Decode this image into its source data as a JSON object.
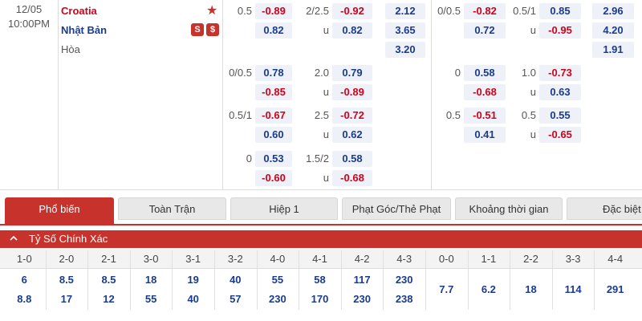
{
  "match": {
    "date": "12/05",
    "time": "10:00PM",
    "home": "Croatia",
    "away": "Nhật Bản",
    "draw": "Hòa",
    "badge_1": "S",
    "badge_2": "$"
  },
  "odds_left": {
    "rows": [
      {
        "hcap": "0.5",
        "hcap_home": "-0.89",
        "hcap_away": "0.82",
        "ou_line": "2/2.5",
        "ou_over": "-0.92",
        "ou_under_label": "u",
        "ou_under": "0.82",
        "x1": "2.12",
        "x2": "3.65",
        "x3": "3.20"
      },
      {
        "hcap": "0/0.5",
        "hcap_home": "0.78",
        "hcap_away": "-0.85",
        "ou_line": "2.0",
        "ou_over": "0.79",
        "ou_under_label": "u",
        "ou_under": "-0.89"
      },
      {
        "hcap": "0.5/1",
        "hcap_home": "-0.67",
        "hcap_away": "0.60",
        "ou_line": "2.5",
        "ou_over": "-0.72",
        "ou_under_label": "u",
        "ou_under": "0.62"
      },
      {
        "hcap": "0",
        "hcap_home": "0.53",
        "hcap_away": "-0.60",
        "ou_line": "1.5/2",
        "ou_over": "0.58",
        "ou_under_label": "u",
        "ou_under": "-0.68"
      }
    ]
  },
  "odds_right": {
    "rows": [
      {
        "hcap": "0/0.5",
        "hcap_home": "-0.82",
        "hcap_away": "0.72",
        "ou_line": "0.5/1",
        "ou_over": "0.85",
        "ou_under_label": "u",
        "ou_under": "-0.95",
        "x1": "2.96",
        "x2": "4.20",
        "x3": "1.91"
      },
      {
        "hcap": "0",
        "hcap_home": "0.58",
        "hcap_away": "-0.68",
        "ou_line": "1.0",
        "ou_over": "-0.73",
        "ou_under_label": "u",
        "ou_under": "0.63"
      },
      {
        "hcap": "0.5",
        "hcap_home": "-0.51",
        "hcap_away": "0.41",
        "ou_line": "0.5",
        "ou_over": "0.55",
        "ou_under_label": "u",
        "ou_under": "-0.65"
      }
    ]
  },
  "tabs": [
    {
      "label": "Phổ biến",
      "active": true
    },
    {
      "label": "Toàn Trận",
      "active": false
    },
    {
      "label": "Hiệp 1",
      "active": false
    },
    {
      "label": "Phạt Góc/Thẻ Phạt",
      "active": false
    },
    {
      "label": "Khoảng thời gian",
      "active": false
    },
    {
      "label": "Đặc biệt",
      "active": false
    }
  ],
  "section": {
    "title": "Tỷ Số Chính Xác",
    "collapse_icon": "chevron-up-icon"
  },
  "scores": {
    "headers": [
      "1-0",
      "2-0",
      "2-1",
      "3-0",
      "3-1",
      "3-2",
      "4-0",
      "4-1",
      "4-2",
      "4-3",
      "0-0",
      "1-1",
      "2-2",
      "3-3",
      "4-4"
    ],
    "row1": [
      "6",
      "8.5",
      "8.5",
      "18",
      "19",
      "40",
      "55",
      "58",
      "117",
      "230",
      "7.7",
      "6.2",
      "18",
      "114",
      "291"
    ],
    "row2": [
      "8.8",
      "17",
      "12",
      "55",
      "40",
      "57",
      "230",
      "170",
      "230",
      "238"
    ]
  },
  "colors": {
    "accent_red": "#c8322c",
    "negative": "#d0021b",
    "positive": "#1a3b8f",
    "box_bg": "#eef1f7"
  }
}
